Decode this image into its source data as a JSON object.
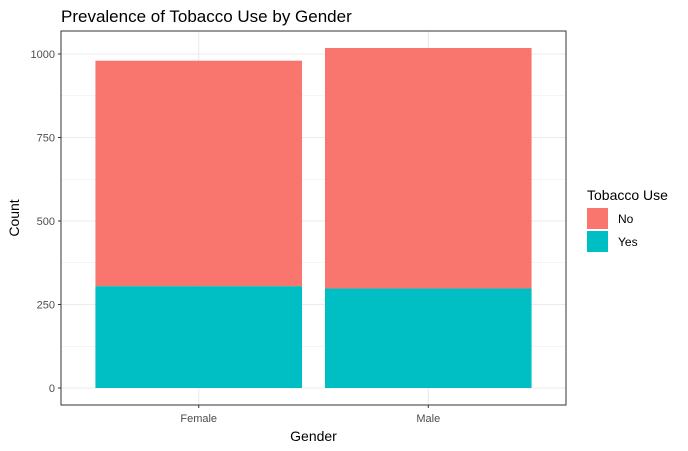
{
  "chart_data": {
    "type": "bar",
    "stacked": true,
    "title": "Prevalence of Tobacco Use by Gender",
    "xlabel": "Gender",
    "ylabel": "Count",
    "categories": [
      "Female",
      "Male"
    ],
    "series": [
      {
        "name": "No",
        "values": [
          675,
          720
        ],
        "color": "#F8766D"
      },
      {
        "name": "Yes",
        "values": [
          305,
          298
        ],
        "color": "#00BFC4"
      }
    ],
    "ylim": [
      0,
      1000
    ],
    "yticks": [
      0,
      250,
      500,
      750,
      1000
    ],
    "legend": {
      "title": "Tobacco Use",
      "position": "right"
    },
    "grid": true,
    "panel_border": true
  }
}
